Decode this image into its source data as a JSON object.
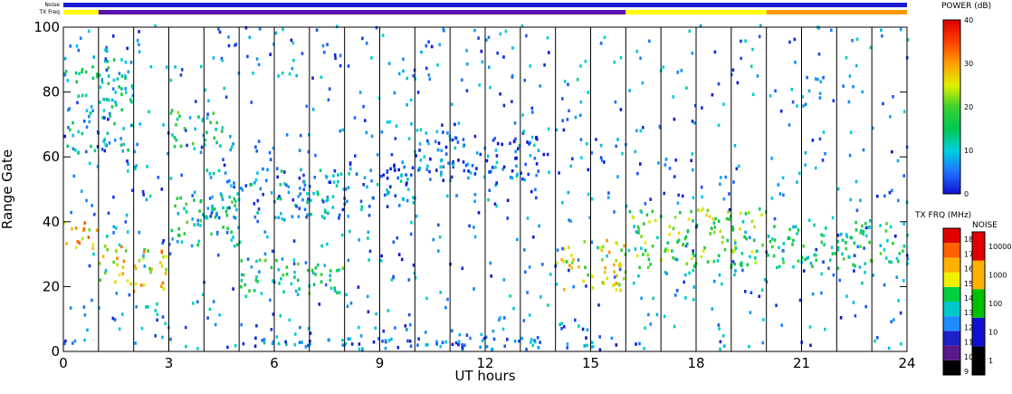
{
  "chart_data": {
    "type": "heatmap",
    "title": "",
    "xlabel": "UT hours",
    "ylabel": "Range Gate",
    "xlim": [
      0,
      24
    ],
    "ylim": [
      0,
      100
    ],
    "x_ticks": [
      "0",
      "3",
      "6",
      "9",
      "12",
      "15",
      "18",
      "21",
      "24"
    ],
    "y_ticks": [
      "0",
      "20",
      "40",
      "60",
      "80",
      "100"
    ],
    "hour_grid": true,
    "bars": [
      {
        "label": "Noise",
        "segments": [
          {
            "from": 0,
            "to": 24,
            "color": "#1a1ad2"
          }
        ]
      },
      {
        "label": "TX Freq",
        "segments": [
          {
            "from": 0,
            "to": 1,
            "color": "#ffff00"
          },
          {
            "from": 1,
            "to": 16,
            "color": "#5a10b0"
          },
          {
            "from": 16,
            "to": 20,
            "color": "#ffff00"
          },
          {
            "from": 20,
            "to": 24,
            "color": "#ff9a00"
          }
        ]
      }
    ],
    "echo_regions": [
      {
        "x": [
          0,
          1
        ],
        "y": [
          30,
          40
        ],
        "power": 28
      },
      {
        "x": [
          1,
          3
        ],
        "y": [
          18,
          32
        ],
        "power": 26
      },
      {
        "x": [
          3,
          5
        ],
        "y": [
          32,
          48
        ],
        "power": 14
      },
      {
        "x": [
          0,
          2
        ],
        "y": [
          60,
          90
        ],
        "power": 12
      },
      {
        "x": [
          3,
          4.5
        ],
        "y": [
          62,
          74
        ],
        "power": 16
      },
      {
        "x": [
          5,
          8
        ],
        "y": [
          17,
          28
        ],
        "power": 15
      },
      {
        "x": [
          4,
          8
        ],
        "y": [
          40,
          56
        ],
        "power": 8
      },
      {
        "x": [
          8,
          10
        ],
        "y": [
          44,
          58
        ],
        "power": 6
      },
      {
        "x": [
          10,
          13.5
        ],
        "y": [
          52,
          68
        ],
        "power": 5
      },
      {
        "x": [
          14,
          16
        ],
        "y": [
          18,
          34
        ],
        "power": 24
      },
      {
        "x": [
          16,
          20
        ],
        "y": [
          25,
          44
        ],
        "power": 20
      },
      {
        "x": [
          20,
          24
        ],
        "y": [
          25,
          40
        ],
        "power": 14
      },
      {
        "x": [
          5,
          16
        ],
        "y": [
          0,
          4
        ],
        "power": 6
      }
    ],
    "colorbars": [
      {
        "name": "POWER (dB)",
        "ticks": [
          "0",
          "10",
          "20",
          "30",
          "40"
        ],
        "range": [
          0,
          40
        ]
      },
      {
        "name": "TX FRQ (MHz)",
        "ticks": [
          "9",
          "10",
          "11",
          "12",
          "13",
          "14",
          "15",
          "16",
          "17",
          "18"
        ],
        "range": [
          9,
          18
        ]
      },
      {
        "name": "NOISE",
        "ticks": [
          "1",
          "10",
          "100",
          "1000",
          "10000"
        ],
        "range": [
          1,
          10000
        ],
        "scale": "log"
      }
    ]
  }
}
